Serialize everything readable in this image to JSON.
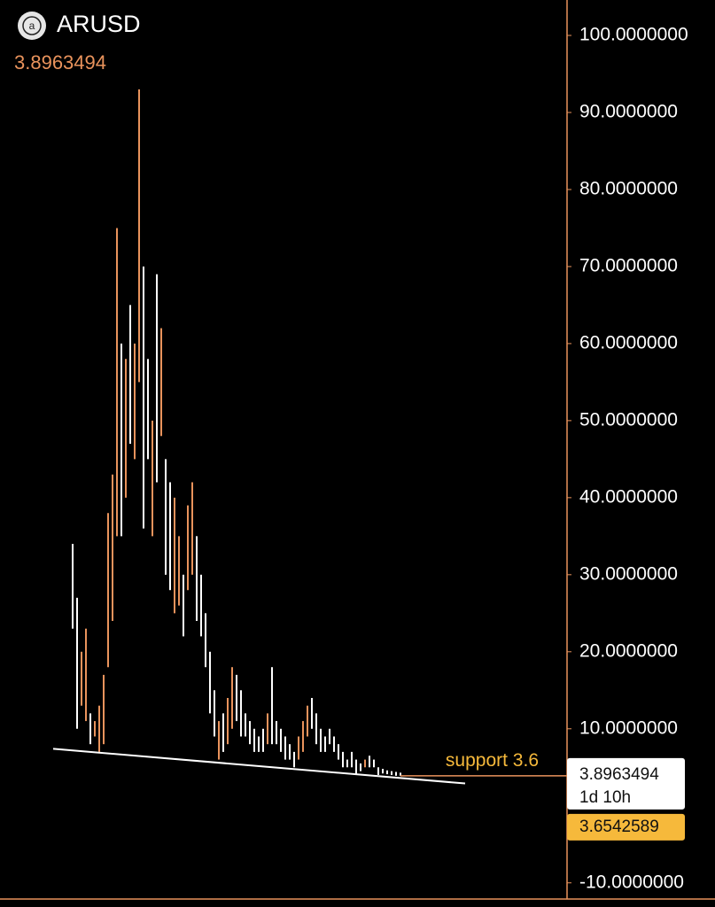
{
  "chart_data": {
    "type": "ohlc",
    "title": "ARUSD",
    "last_price": 3.8963494,
    "countdown": "1d 10h",
    "marker_price": 3.6542589,
    "up_color": "#e9935c",
    "down_color": "#ffffff",
    "axis_color": "#e9935c",
    "marker_color": "#f6b93b",
    "ylim": [
      -12.1,
      104.6
    ],
    "yticks": [
      {
        "value": -10,
        "label": "-10.0000000"
      },
      {
        "value": 10,
        "label": "10.0000000"
      },
      {
        "value": 20,
        "label": "20.0000000"
      },
      {
        "value": 30,
        "label": "30.0000000"
      },
      {
        "value": 40,
        "label": "40.0000000"
      },
      {
        "value": 50,
        "label": "50.0000000"
      },
      {
        "value": 60,
        "label": "60.0000000"
      },
      {
        "value": 70,
        "label": "70.0000000"
      },
      {
        "value": 80,
        "label": "80.0000000"
      },
      {
        "value": 90,
        "label": "90.0000000"
      },
      {
        "value": 100,
        "label": "100.0000000"
      }
    ],
    "high": [
      34,
      27,
      20,
      23,
      12,
      11,
      13,
      17,
      38,
      43,
      75,
      60,
      58,
      65,
      60,
      93,
      70,
      58,
      50,
      69,
      62,
      45,
      42,
      40,
      35,
      30,
      39,
      42,
      35,
      30,
      25,
      20,
      15,
      11,
      12,
      14,
      18,
      17,
      15,
      12,
      11,
      10,
      9,
      10,
      12,
      18,
      11,
      10,
      9,
      8,
      7,
      9,
      11,
      13,
      14,
      12,
      10,
      9,
      10,
      9,
      8,
      7,
      6,
      7,
      6,
      5.5,
      6,
      6.5,
      6,
      5,
      4.8,
      4.6,
      4.5,
      4.4,
      4.3
    ],
    "low": [
      23,
      10,
      13,
      11,
      8,
      9,
      7,
      8,
      18,
      24,
      35,
      35,
      40,
      47,
      45,
      55,
      36,
      45,
      35,
      42,
      48,
      30,
      28,
      25,
      26,
      22,
      28,
      30,
      24,
      22,
      18,
      12,
      9,
      6,
      7,
      8,
      10,
      11,
      9,
      9,
      8,
      7,
      7,
      7,
      8,
      8,
      8,
      7,
      6,
      6,
      5,
      6,
      7,
      9,
      10,
      8,
      7,
      7,
      8,
      7,
      6,
      5,
      5,
      5,
      4,
      4.5,
      5,
      5,
      5,
      4,
      4.2,
      4.1,
      4,
      3.9,
      3.9
    ],
    "up": [
      false,
      false,
      true,
      true,
      false,
      true,
      true,
      true,
      true,
      true,
      true,
      false,
      true,
      false,
      true,
      true,
      false,
      false,
      true,
      false,
      true,
      false,
      false,
      true,
      true,
      false,
      true,
      true,
      false,
      false,
      false,
      false,
      false,
      true,
      false,
      true,
      true,
      false,
      false,
      false,
      false,
      false,
      false,
      false,
      true,
      false,
      false,
      false,
      false,
      false,
      false,
      true,
      true,
      true,
      false,
      false,
      false,
      false,
      false,
      false,
      false,
      false,
      false,
      false,
      false,
      false,
      true,
      false,
      false,
      false,
      false,
      false,
      false,
      false,
      false
    ],
    "trendline": {
      "label": "support 3.6",
      "x": [
        -4.4,
        88.6
      ],
      "y": [
        7.4,
        2.9
      ]
    }
  }
}
